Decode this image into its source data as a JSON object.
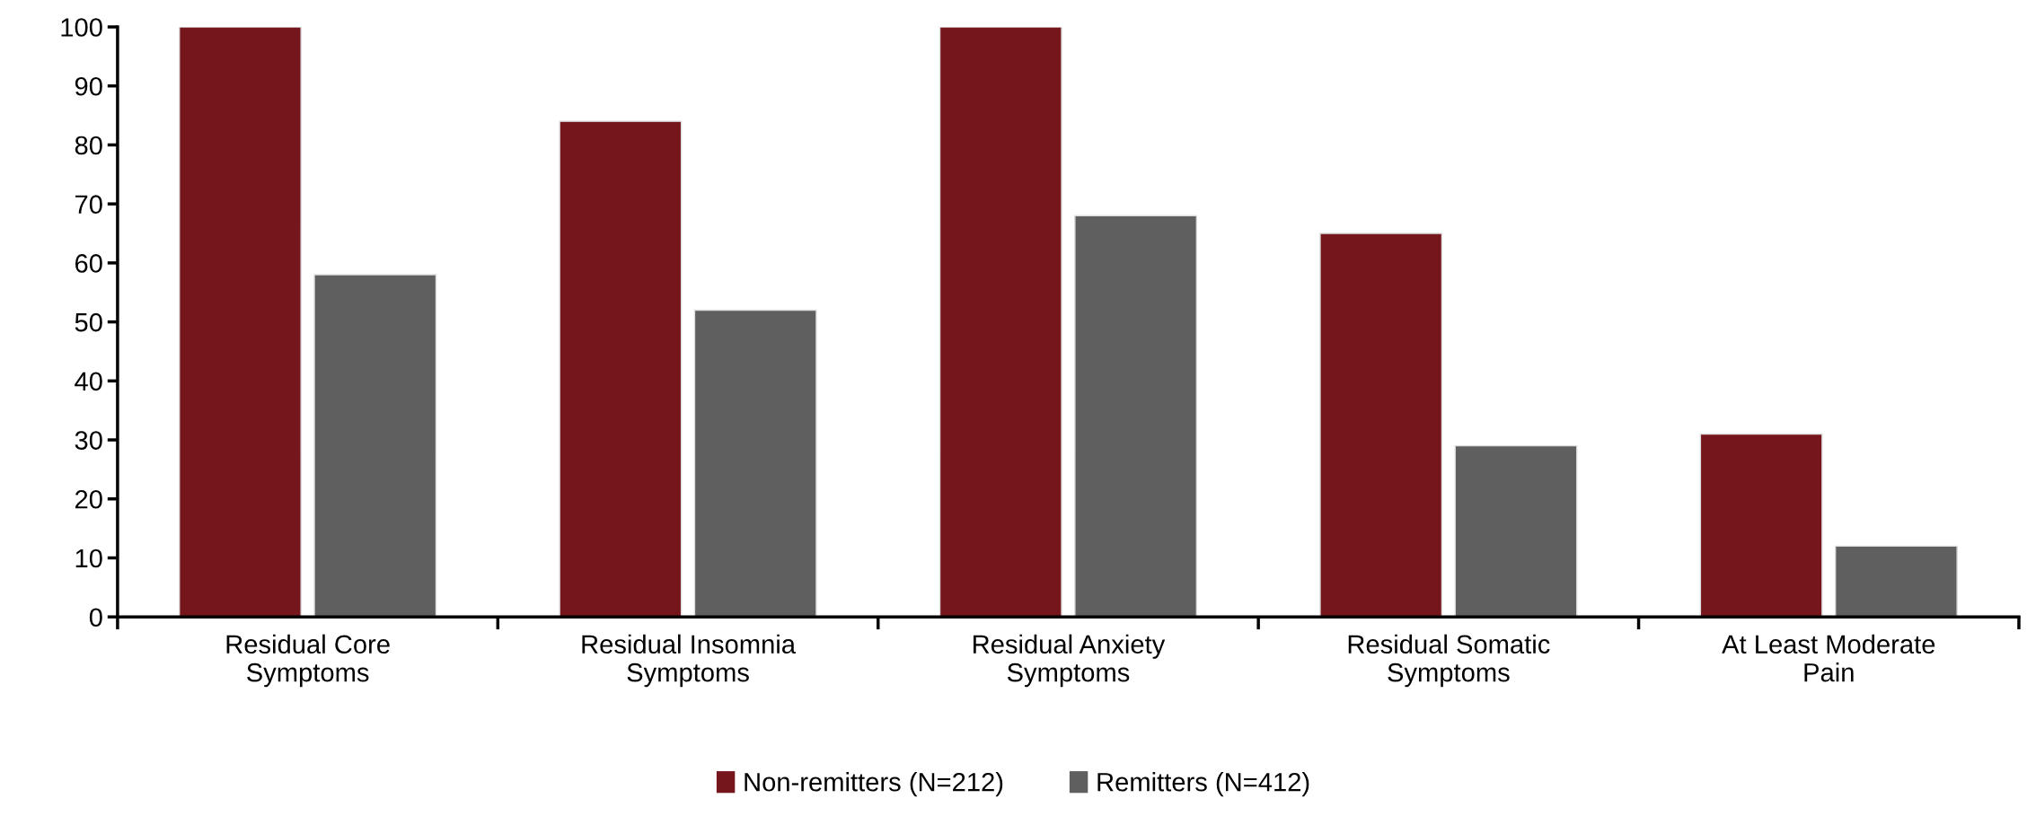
{
  "chart_data": {
    "type": "bar",
    "categories": [
      "Residual Core\nSymptoms",
      "Residual Insomnia\nSymptoms",
      "Residual Anxiety\nSymptoms",
      "Residual Somatic\nSymptoms",
      "At Least Moderate\nPain"
    ],
    "series": [
      {
        "name": "Non-remitters (N=212)",
        "color": "#75161c",
        "values": [
          100,
          84,
          100,
          65,
          31
        ]
      },
      {
        "name": "Remitters (N=412)",
        "color": "#5f5f5f",
        "values": [
          58,
          52,
          68,
          29,
          12
        ]
      }
    ],
    "ylim": [
      0,
      100
    ],
    "yticks": [
      0,
      10,
      20,
      30,
      40,
      50,
      60,
      70,
      80,
      90,
      100
    ],
    "grid": false,
    "legend": "bottom"
  }
}
